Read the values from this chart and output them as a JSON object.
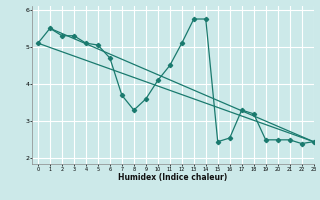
{
  "title": "",
  "xlabel": "Humidex (Indice chaleur)",
  "ylabel": "",
  "xlim": [
    -0.5,
    23
  ],
  "ylim": [
    1.85,
    6.1
  ],
  "yticks": [
    2,
    3,
    4,
    5,
    6
  ],
  "xticks": [
    0,
    1,
    2,
    3,
    4,
    5,
    6,
    7,
    8,
    9,
    10,
    11,
    12,
    13,
    14,
    15,
    16,
    17,
    18,
    19,
    20,
    21,
    22,
    23
  ],
  "bg_color": "#cce9e9",
  "grid_color": "#ffffff",
  "line_color": "#1a7a6e",
  "line1_x": [
    0,
    1,
    2,
    3,
    4,
    5,
    6,
    7,
    8,
    9,
    10,
    11,
    12,
    13,
    14,
    15,
    16,
    17,
    18,
    19,
    20,
    21,
    22,
    23
  ],
  "line1_y": [
    5.1,
    5.5,
    5.3,
    5.3,
    5.1,
    5.05,
    4.7,
    3.7,
    3.3,
    3.6,
    4.1,
    4.5,
    5.1,
    5.75,
    5.75,
    2.45,
    2.55,
    3.3,
    3.2,
    2.5,
    2.5,
    2.5,
    2.4,
    2.45
  ],
  "line2_x": [
    0,
    23
  ],
  "line2_y": [
    5.1,
    2.45
  ],
  "line3_x": [
    1,
    23
  ],
  "line3_y": [
    5.5,
    2.45
  ]
}
